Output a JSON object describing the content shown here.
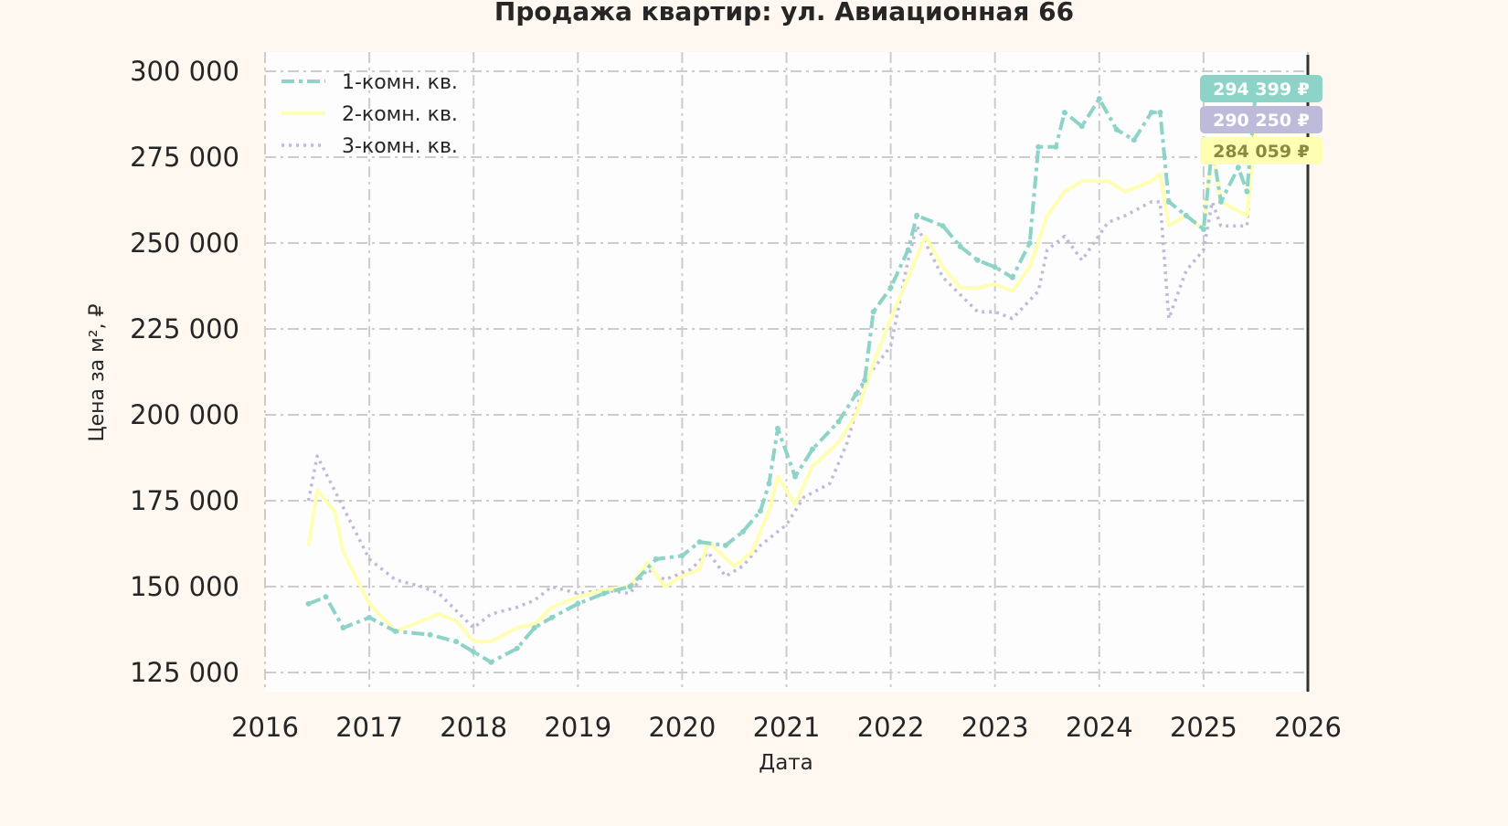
{
  "chart_data": {
    "type": "line",
    "title": "Продажа квартир: ул. Авиационная 66",
    "xlabel": "Дата",
    "ylabel": "Цена за м², ₽",
    "xlim": [
      "2016-01",
      "2026-01"
    ],
    "ylim": [
      120000,
      305000
    ],
    "x_ticks": [
      "2016",
      "2017",
      "2018",
      "2019",
      "2020",
      "2021",
      "2022",
      "2023",
      "2024",
      "2025",
      "2026"
    ],
    "y_ticks": [
      125000,
      150000,
      175000,
      200000,
      225000,
      250000,
      275000,
      300000
    ],
    "y_tick_labels": [
      "125 000",
      "150 000",
      "175 000",
      "200 000",
      "225 000",
      "250 000",
      "275 000",
      "300 000"
    ],
    "grid": true,
    "legend_position": "top-left",
    "series": [
      {
        "name": "1-комн. кв.",
        "color": "#8dd3c7",
        "style": "dash-dot-marker",
        "last_label": "294 399 ₽",
        "points": [
          [
            "2016-06",
            145000
          ],
          [
            "2016-08",
            147000
          ],
          [
            "2016-10",
            138000
          ],
          [
            "2017-01",
            141000
          ],
          [
            "2017-04",
            137000
          ],
          [
            "2017-08",
            136000
          ],
          [
            "2017-11",
            134000
          ],
          [
            "2018-01",
            131000
          ],
          [
            "2018-03",
            128000
          ],
          [
            "2018-06",
            132000
          ],
          [
            "2018-08",
            138000
          ],
          [
            "2018-10",
            141000
          ],
          [
            "2019-01",
            145000
          ],
          [
            "2019-04",
            148000
          ],
          [
            "2019-07",
            150000
          ],
          [
            "2019-10",
            158000
          ],
          [
            "2020-01",
            159000
          ],
          [
            "2020-03",
            163000
          ],
          [
            "2020-06",
            162000
          ],
          [
            "2020-08",
            166000
          ],
          [
            "2020-10",
            172000
          ],
          [
            "2020-11",
            180000
          ],
          [
            "2020-12",
            196000
          ],
          [
            "2021-02",
            182000
          ],
          [
            "2021-04",
            190000
          ],
          [
            "2021-07",
            198000
          ],
          [
            "2021-09",
            206000
          ],
          [
            "2021-10",
            210000
          ],
          [
            "2021-11",
            230000
          ],
          [
            "2022-01",
            237000
          ],
          [
            "2022-03",
            248000
          ],
          [
            "2022-04",
            258000
          ],
          [
            "2022-07",
            255000
          ],
          [
            "2022-09",
            249000
          ],
          [
            "2022-11",
            245000
          ],
          [
            "2023-01",
            243000
          ],
          [
            "2023-03",
            240000
          ],
          [
            "2023-05",
            250000
          ],
          [
            "2023-06",
            278000
          ],
          [
            "2023-08",
            278000
          ],
          [
            "2023-09",
            288000
          ],
          [
            "2023-11",
            284000
          ],
          [
            "2024-01",
            292000
          ],
          [
            "2024-03",
            283000
          ],
          [
            "2024-05",
            280000
          ],
          [
            "2024-07",
            288000
          ],
          [
            "2024-08",
            288000
          ],
          [
            "2024-09",
            262000
          ],
          [
            "2024-11",
            258000
          ],
          [
            "2025-01",
            254000
          ],
          [
            "2025-02",
            278000
          ],
          [
            "2025-03",
            262000
          ],
          [
            "2025-05",
            272000
          ],
          [
            "2025-06",
            265000
          ],
          [
            "2025-07",
            294399
          ]
        ]
      },
      {
        "name": "2-комн. кв.",
        "color": "#ffffb3",
        "style": "solid",
        "last_label": "284 059 ₽",
        "points": [
          [
            "2016-06",
            162000
          ],
          [
            "2016-07",
            178000
          ],
          [
            "2016-09",
            172000
          ],
          [
            "2016-10",
            160000
          ],
          [
            "2016-12",
            150000
          ],
          [
            "2017-01",
            145000
          ],
          [
            "2017-04",
            137000
          ],
          [
            "2017-07",
            140000
          ],
          [
            "2017-09",
            142000
          ],
          [
            "2017-11",
            140000
          ],
          [
            "2018-01",
            134000
          ],
          [
            "2018-03",
            134000
          ],
          [
            "2018-06",
            138000
          ],
          [
            "2018-08",
            139000
          ],
          [
            "2018-10",
            144000
          ],
          [
            "2019-01",
            147000
          ],
          [
            "2019-04",
            149000
          ],
          [
            "2019-07",
            150000
          ],
          [
            "2019-09",
            157000
          ],
          [
            "2019-11",
            150000
          ],
          [
            "2020-01",
            153000
          ],
          [
            "2020-03",
            155000
          ],
          [
            "2020-04",
            163000
          ],
          [
            "2020-07",
            156000
          ],
          [
            "2020-09",
            160000
          ],
          [
            "2020-11",
            172000
          ],
          [
            "2020-12",
            182000
          ],
          [
            "2021-02",
            174000
          ],
          [
            "2021-04",
            185000
          ],
          [
            "2021-07",
            192000
          ],
          [
            "2021-09",
            200000
          ],
          [
            "2021-11",
            215000
          ],
          [
            "2022-01",
            228000
          ],
          [
            "2022-03",
            240000
          ],
          [
            "2022-05",
            252000
          ],
          [
            "2022-07",
            243000
          ],
          [
            "2022-09",
            237000
          ],
          [
            "2022-11",
            237000
          ],
          [
            "2023-01",
            238000
          ],
          [
            "2023-03",
            236000
          ],
          [
            "2023-05",
            243000
          ],
          [
            "2023-07",
            258000
          ],
          [
            "2023-09",
            265000
          ],
          [
            "2023-11",
            268000
          ],
          [
            "2024-02",
            268000
          ],
          [
            "2024-04",
            265000
          ],
          [
            "2024-07",
            268000
          ],
          [
            "2024-08",
            270000
          ],
          [
            "2024-09",
            255000
          ],
          [
            "2024-11",
            258000
          ],
          [
            "2025-01",
            254000
          ],
          [
            "2025-02",
            278000
          ],
          [
            "2025-03",
            262000
          ],
          [
            "2025-06",
            258000
          ],
          [
            "2025-07",
            284059
          ]
        ]
      },
      {
        "name": "3-комн. кв.",
        "color": "#bebada",
        "style": "dotted",
        "last_label": "290 250 ₽",
        "points": [
          [
            "2016-06",
            175000
          ],
          [
            "2016-07",
            188000
          ],
          [
            "2016-09",
            178000
          ],
          [
            "2016-11",
            168000
          ],
          [
            "2017-01",
            158000
          ],
          [
            "2017-04",
            152000
          ],
          [
            "2017-07",
            150000
          ],
          [
            "2017-09",
            148000
          ],
          [
            "2017-11",
            143000
          ],
          [
            "2018-01",
            138000
          ],
          [
            "2018-03",
            142000
          ],
          [
            "2018-06",
            144000
          ],
          [
            "2018-08",
            146000
          ],
          [
            "2018-10",
            150000
          ],
          [
            "2019-01",
            148000
          ],
          [
            "2019-04",
            149000
          ],
          [
            "2019-07",
            148000
          ],
          [
            "2019-09",
            155000
          ],
          [
            "2019-11",
            152000
          ],
          [
            "2020-02",
            155000
          ],
          [
            "2020-04",
            160000
          ],
          [
            "2020-06",
            153000
          ],
          [
            "2020-08",
            156000
          ],
          [
            "2020-10",
            162000
          ],
          [
            "2021-01",
            168000
          ],
          [
            "2021-03",
            176000
          ],
          [
            "2021-06",
            180000
          ],
          [
            "2021-08",
            192000
          ],
          [
            "2021-10",
            210000
          ],
          [
            "2022-01",
            220000
          ],
          [
            "2022-03",
            245000
          ],
          [
            "2022-04",
            255000
          ],
          [
            "2022-07",
            240000
          ],
          [
            "2022-09",
            235000
          ],
          [
            "2022-11",
            230000
          ],
          [
            "2023-01",
            230000
          ],
          [
            "2023-03",
            228000
          ],
          [
            "2023-06",
            236000
          ],
          [
            "2023-07",
            248000
          ],
          [
            "2023-09",
            252000
          ],
          [
            "2023-11",
            245000
          ],
          [
            "2024-02",
            256000
          ],
          [
            "2024-04",
            258000
          ],
          [
            "2024-07",
            262000
          ],
          [
            "2024-08",
            262000
          ],
          [
            "2024-09",
            228000
          ],
          [
            "2024-11",
            242000
          ],
          [
            "2025-01",
            248000
          ],
          [
            "2025-02",
            262000
          ],
          [
            "2025-03",
            255000
          ],
          [
            "2025-06",
            255000
          ],
          [
            "2025-07",
            290250
          ]
        ]
      }
    ]
  }
}
